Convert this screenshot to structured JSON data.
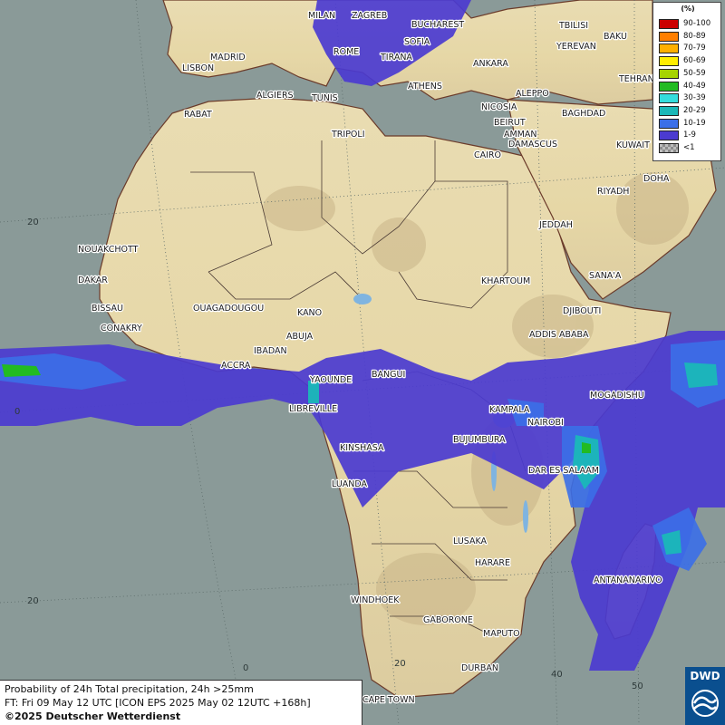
{
  "map": {
    "latitude_labels": [
      "20",
      "0",
      "20"
    ],
    "longitude_labels": [
      "0",
      "20",
      "40",
      "50"
    ],
    "cities": [
      "MILAN",
      "ZAGREB",
      "BUCHAREST",
      "ROME",
      "SOFIA",
      "TIRANA",
      "MADRID",
      "LISBON",
      "ANKARA",
      "BAKU",
      "TBILISI",
      "YEREVAN",
      "TEHRAN",
      "ATHENS",
      "ALGIERS",
      "TUNIS",
      "ALEPPO",
      "RABAT",
      "NICOSIA",
      "BAGHDAD",
      "DAMASCUS",
      "BEIRUT",
      "AMMAN",
      "TRIPOLI",
      "KUWAIT",
      "CAIRO",
      "DOHA",
      "RIYADH",
      "NOUAKCHOTT",
      "JEDDAH",
      "DAKAR",
      "KHARTOUM",
      "SANA'A",
      "BISSAU",
      "OUAGADOUGOU",
      "KANO",
      "DJIBOUTI",
      "CONAKRY",
      "ABUJA",
      "ADDIS ABABA",
      "IBADAN",
      "ACCRA",
      "BANGUI",
      "MOGADISHU",
      "YAOUNDE",
      "LIBREVILLE",
      "KAMPALA",
      "NAIROBI",
      "KINSHASA",
      "BUJUMBURA",
      "DAR ES SALAAM",
      "LUANDA",
      "LUSAKA",
      "HARARE",
      "ANTANANARIVO",
      "WINDHOEK",
      "GABORONE",
      "MAPUTO",
      "DURBAN",
      "CAPE TOWN"
    ]
  },
  "legend": {
    "title": "(%)",
    "items": [
      {
        "label": "90-100",
        "color": "#cc0000"
      },
      {
        "label": "80-89",
        "color": "#ff7f00"
      },
      {
        "label": "70-79",
        "color": "#ffb000"
      },
      {
        "label": "60-69",
        "color": "#ffee00"
      },
      {
        "label": "50-59",
        "color": "#a6d400"
      },
      {
        "label": "40-49",
        "color": "#22bb22"
      },
      {
        "label": "30-39",
        "color": "#33dddd"
      },
      {
        "label": "20-29",
        "color": "#1ab8b8"
      },
      {
        "label": "10-19",
        "color": "#3b6fe8"
      },
      {
        "label": "1-9",
        "color": "#4b3bd0"
      },
      {
        "label": "<1",
        "color": "checker"
      }
    ]
  },
  "info": {
    "line1": "Probability of 24h Total precipitation, 24h >25mm",
    "line2": "FT: Fri 09 May 12 UTC [ICON EPS 2025 May 02 12UTC +168h]",
    "line3": "©2025 Deutscher Wetterdienst"
  },
  "logo": {
    "text": "DWD"
  },
  "colors": {
    "ocean": "#8a9a98",
    "land": "#e8dcae",
    "precip_low": "#4b3bd0",
    "precip_mid": "#3b6fe8"
  }
}
